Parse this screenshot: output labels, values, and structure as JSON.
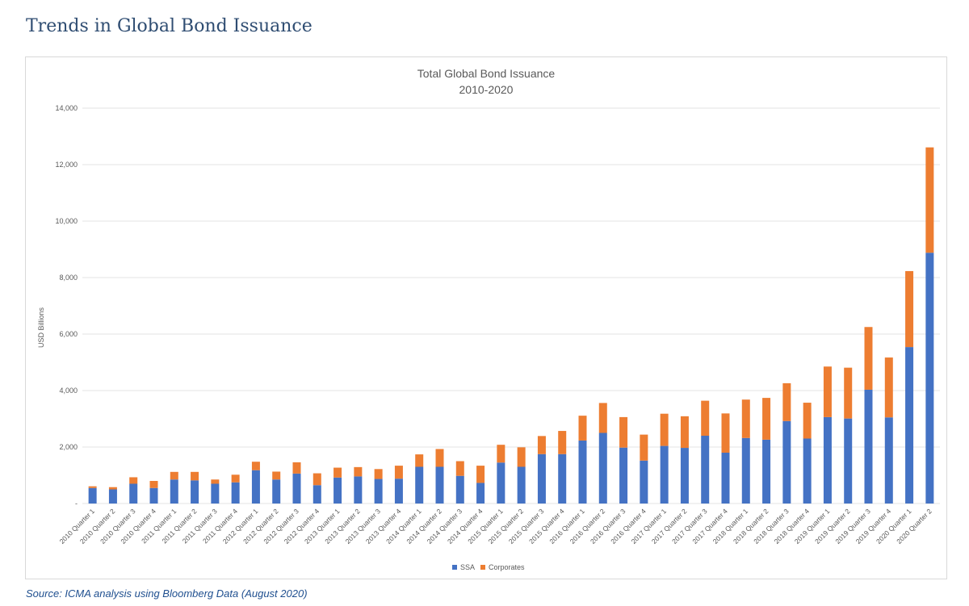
{
  "heading": "Trends in Global Bond Issuance",
  "source": "Source: ICMA analysis using Bloomberg Data (August 2020)",
  "colors": {
    "ssa": "#4472c4",
    "corporates": "#ed7d31",
    "grid": "#e3e3e3",
    "heading": "#2f4d72",
    "source": "#1f4f8f"
  },
  "chart_data": {
    "type": "bar",
    "stacked": true,
    "title": "Total Global Bond Issuance",
    "subtitle": "2010-2020",
    "ylabel": "USD Billions",
    "xlabel": "",
    "ylim": [
      0,
      14000
    ],
    "yticks": [
      0,
      2000,
      4000,
      6000,
      8000,
      10000,
      12000,
      14000
    ],
    "ytick_labels": [
      "-",
      "2,000",
      "4,000",
      "6,000",
      "8,000",
      "10,000",
      "12,000",
      "14,000"
    ],
    "grid": true,
    "legend_position": "bottom",
    "categories": [
      "2010 Quarter 1",
      "2010 Quarter 2",
      "2010 Quarter 3",
      "2010 Quarter 4",
      "2011 Quarter 1",
      "2011 Quarter 2",
      "2011 Quarter 3",
      "2011 Quarter 4",
      "2012 Quarter 1",
      "2012 Quarter 2",
      "2012 Quarter 3",
      "2012 Quarter 4",
      "2013 Quarter 1",
      "2013 Quarter 2",
      "2013 Quarter 3",
      "2013 Quarter 4",
      "2014 Quarter 1",
      "2014 Quarter 2",
      "2014 Quarter 3",
      "2014 Quarter 4",
      "2015 Quarter 1",
      "2015 Quarter 2",
      "2015 Quarter 3",
      "2015 Quarter 4",
      "2016 Quarter 1",
      "2016 Quarter 2",
      "2016 Quarter 3",
      "2016 Quarter 4",
      "2017 Quarter 1",
      "2017 Quarter 2",
      "2017 Quarter 3",
      "2017 Quarter 4",
      "2018 Quarter 1",
      "2018 Quarter 2",
      "2018 Quarter 3",
      "2018 Quarter 4",
      "2019 Quarter 1",
      "2019 Quarter 2",
      "2019 Quarter 3",
      "2019 Quarter 4",
      "2020 Quarter 1",
      "2020 Quarter 2"
    ],
    "series": [
      {
        "name": "SSA",
        "values": [
          550,
          500,
          700,
          550,
          850,
          820,
          700,
          750,
          1180,
          850,
          1060,
          650,
          920,
          960,
          870,
          880,
          1300,
          1300,
          980,
          730,
          1450,
          1300,
          1750,
          1750,
          2230,
          2500,
          1980,
          1520,
          2040,
          1970,
          2400,
          1800,
          2320,
          2260,
          2920,
          2300,
          3060,
          3010,
          4030,
          3050,
          5540,
          8880
        ]
      },
      {
        "name": "Corporates",
        "values": [
          60,
          80,
          230,
          250,
          270,
          300,
          150,
          270,
          300,
          280,
          400,
          420,
          350,
          330,
          350,
          460,
          440,
          630,
          520,
          610,
          630,
          690,
          640,
          820,
          880,
          1060,
          1080,
          920,
          1140,
          1120,
          1240,
          1390,
          1360,
          1480,
          1340,
          1270,
          1790,
          1800,
          2220,
          2120,
          2690,
          3730
        ]
      }
    ]
  }
}
